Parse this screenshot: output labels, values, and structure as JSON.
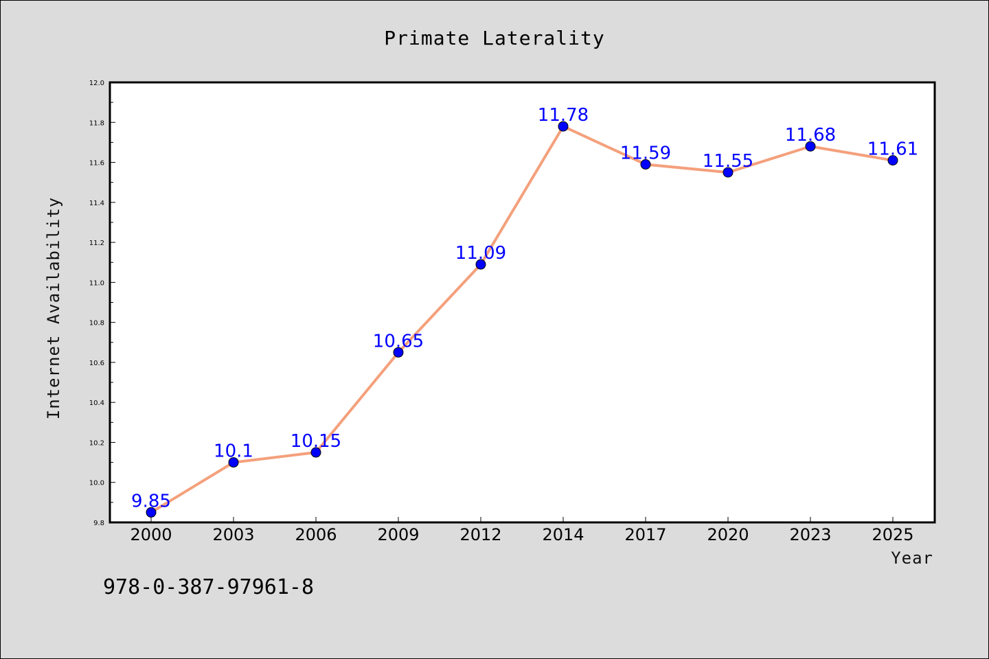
{
  "chart_data": {
    "type": "line",
    "title": "Primate Laterality",
    "xlabel": "Year",
    "ylabel": "Internet Availability",
    "categories": [
      "2000",
      "2003",
      "2006",
      "2009",
      "2012",
      "2014",
      "2017",
      "2020",
      "2023",
      "2025"
    ],
    "series": [
      {
        "values": [
          9.85,
          10.1,
          10.15,
          10.65,
          11.09,
          11.78,
          11.59,
          11.55,
          11.68,
          11.61
        ],
        "labels": [
          "9.85",
          "10.1",
          "10.15",
          "10.65",
          "11.09",
          "11.78",
          "11.59",
          "11.55",
          "11.68",
          "11.61"
        ],
        "line_color": "#f4a07c",
        "marker_color": "#0000ff"
      }
    ],
    "ylim": [
      9.8,
      12.0
    ],
    "yticks": [
      "9.8",
      "10.0",
      "10.2",
      "10.4",
      "10.6",
      "10.8",
      "11.0",
      "11.2",
      "11.4",
      "11.6",
      "11.8",
      "12.0"
    ],
    "grid": false,
    "legend": "none"
  },
  "annotation": {
    "isbn": "978-0-387-97961-8"
  }
}
